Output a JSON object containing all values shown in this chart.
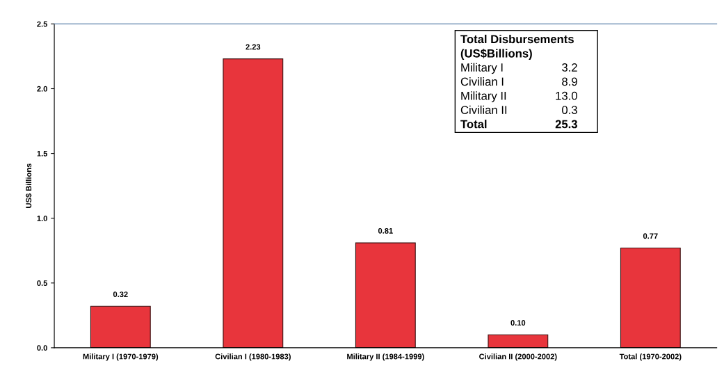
{
  "chart_data": {
    "type": "bar",
    "ylabel": "US$ Billions",
    "categories": [
      "Military I (1970-1979)",
      "Civilian I (1980-1983)",
      "Military II (1984-1999)",
      "Civilian II (2000-2002)",
      "Total (1970-2002)"
    ],
    "values": [
      0.32,
      2.23,
      0.81,
      0.1,
      0.77
    ],
    "value_labels": [
      "0.32",
      "2.23",
      "0.81",
      "0.10",
      "0.77"
    ],
    "color": "#e8353c",
    "ylim": [
      0,
      2.5
    ],
    "yticks": [
      {
        "value": 0,
        "label": "0.0"
      },
      {
        "value": 0.5,
        "label": "0.5"
      },
      {
        "value": 1.0,
        "label": "1.0"
      },
      {
        "value": 1.5,
        "label": "1.5"
      },
      {
        "value": 2.0,
        "label": "2.0"
      },
      {
        "value": 2.5,
        "label": "2.5"
      }
    ],
    "grid": false,
    "annotations": [
      "Total Disbursements",
      "(US$Billions)",
      "Military I",
      "3.2",
      "Civilian I",
      "8.9",
      "Military II",
      "13.0",
      "Civilian II",
      "0.3",
      "Total",
      "25.3"
    ]
  }
}
